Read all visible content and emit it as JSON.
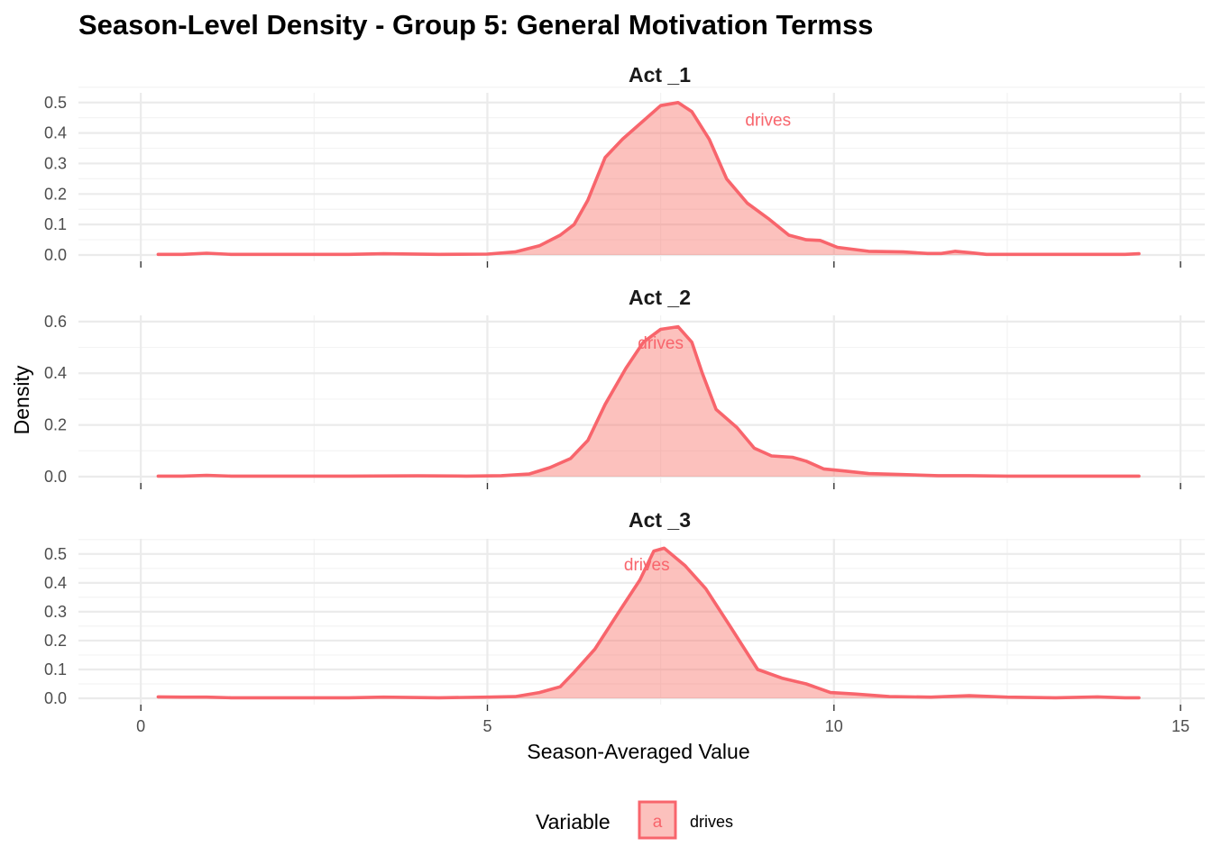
{
  "chart_data": {
    "type": "area",
    "title": "Season-Level Density - Group 5: General Motivation Termss",
    "xlabel": "Season-Averaged Value",
    "ylabel": "Density",
    "xlim": [
      -0.9,
      15.35
    ],
    "x_ticks": [
      "0",
      "5",
      "10",
      "15"
    ],
    "x_tick_values": [
      0,
      5,
      10,
      15
    ],
    "grid": true,
    "legend": {
      "title": "Variable",
      "position": "bottom",
      "key_glyph": "a",
      "entries": [
        "drives"
      ]
    },
    "colors": {
      "line": "#F8656C",
      "fill": "#F8766D",
      "fill_opacity": 0.45,
      "grid_major": "#EBEBEB",
      "grid_minor": "#F3F3F3"
    },
    "panels": [
      {
        "strip": "Act _1",
        "ylim": [
          0,
          0.52
        ],
        "y_ticks": [
          "0.0",
          "0.1",
          "0.2",
          "0.3",
          "0.4",
          "0.5"
        ],
        "y_tick_values": [
          0,
          0.1,
          0.2,
          0.3,
          0.4,
          0.5
        ],
        "label": {
          "text": "drives",
          "x": 9.05,
          "y": 0.445
        },
        "series": [
          {
            "name": "drives",
            "x": [
              0.25,
              0.6,
              0.95,
              1.3,
              2,
              3,
              3.5,
              4.3,
              5,
              5.4,
              5.75,
              6.05,
              6.25,
              6.45,
              6.7,
              6.95,
              7.25,
              7.5,
              7.75,
              7.95,
              8.2,
              8.45,
              8.75,
              9.05,
              9.35,
              9.6,
              9.8,
              10.05,
              10.5,
              11,
              11.35,
              11.55,
              11.75,
              11.95,
              12.2,
              12.6,
              13.2,
              13.7,
              14.2,
              14.4
            ],
            "y": [
              0.002,
              0.002,
              0.006,
              0.002,
              0.002,
              0.002,
              0.004,
              0.002,
              0.003,
              0.01,
              0.03,
              0.065,
              0.1,
              0.18,
              0.32,
              0.38,
              0.44,
              0.49,
              0.5,
              0.47,
              0.38,
              0.25,
              0.17,
              0.12,
              0.065,
              0.05,
              0.048,
              0.025,
              0.012,
              0.01,
              0.005,
              0.005,
              0.012,
              0.008,
              0.002,
              0.002,
              0.002,
              0.002,
              0.002,
              0.004
            ]
          }
        ]
      },
      {
        "strip": "Act _2",
        "ylim": [
          0,
          0.61
        ],
        "y_ticks": [
          "0.0",
          "0.2",
          "0.4",
          "0.6"
        ],
        "y_tick_values": [
          0,
          0.2,
          0.4,
          0.6
        ],
        "label": {
          "text": "drives",
          "x": 7.5,
          "y": 0.52
        },
        "series": [
          {
            "name": "drives",
            "x": [
              0.25,
              0.6,
              0.95,
              1.3,
              2,
              3,
              4,
              4.7,
              5.2,
              5.6,
              5.9,
              6.2,
              6.45,
              6.7,
              7,
              7.25,
              7.5,
              7.75,
              7.95,
              8.1,
              8.3,
              8.6,
              8.85,
              9.1,
              9.4,
              9.6,
              9.85,
              10.15,
              10.5,
              11,
              11.5,
              11.95,
              12.5,
              13.3,
              14,
              14.4
            ],
            "y": [
              0.002,
              0.002,
              0.005,
              0.002,
              0.002,
              0.002,
              0.003,
              0.002,
              0.004,
              0.01,
              0.035,
              0.07,
              0.14,
              0.28,
              0.42,
              0.52,
              0.57,
              0.58,
              0.52,
              0.4,
              0.26,
              0.19,
              0.11,
              0.08,
              0.075,
              0.06,
              0.03,
              0.022,
              0.012,
              0.008,
              0.004,
              0.004,
              0.002,
              0.002,
              0.002,
              0.002
            ]
          }
        ]
      },
      {
        "strip": "Act _3",
        "ylim": [
          0,
          0.54
        ],
        "y_ticks": [
          "0.0",
          "0.1",
          "0.2",
          "0.3",
          "0.4",
          "0.5"
        ],
        "y_tick_values": [
          0,
          0.1,
          0.2,
          0.3,
          0.4,
          0.5
        ],
        "label": {
          "text": "drives",
          "x": 7.3,
          "y": 0.465
        },
        "series": [
          {
            "name": "drives",
            "x": [
              0.25,
              0.6,
              0.95,
              1.3,
              2,
              3,
              3.5,
              4.3,
              5,
              5.4,
              5.75,
              6.05,
              6.25,
              6.55,
              6.9,
              7.2,
              7.4,
              7.55,
              7.85,
              8.15,
              8.5,
              8.9,
              9.25,
              9.6,
              9.95,
              10.3,
              10.8,
              11.4,
              11.95,
              12.5,
              13.2,
              13.8,
              14.2,
              14.4
            ],
            "y": [
              0.005,
              0.004,
              0.004,
              0.002,
              0.002,
              0.002,
              0.004,
              0.002,
              0.004,
              0.006,
              0.02,
              0.04,
              0.09,
              0.17,
              0.3,
              0.41,
              0.51,
              0.52,
              0.46,
              0.38,
              0.25,
              0.1,
              0.07,
              0.05,
              0.02,
              0.015,
              0.006,
              0.004,
              0.009,
              0.004,
              0.002,
              0.005,
              0.002,
              0.002
            ]
          }
        ]
      }
    ]
  }
}
